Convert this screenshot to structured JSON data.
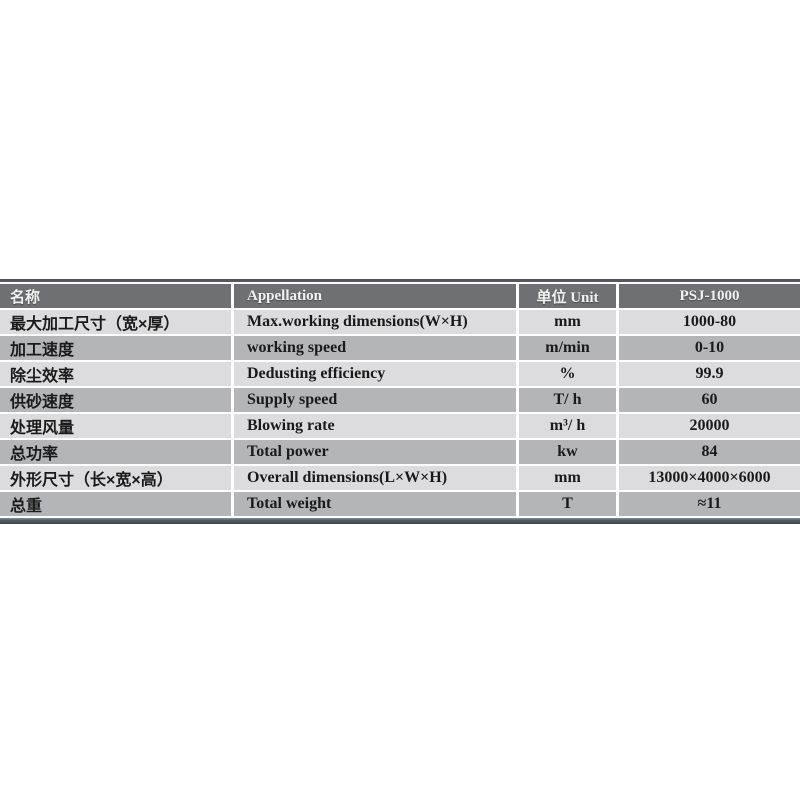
{
  "colors": {
    "top_line": "#55575a",
    "header_bg": "#6e7073",
    "row_light": "#dcdcde",
    "row_dark": "#b4b5b8",
    "bar_top": "#8a949a",
    "bottom_bar": "#4d5a60",
    "bar_bottom": "#3b454b"
  },
  "table": {
    "header": {
      "name_cn": "名称",
      "appellation": "Appellation",
      "unit": "单位 Unit",
      "model": "PSJ-1000"
    },
    "rows": [
      {
        "name_cn": "最大加工尺寸（宽×厚）",
        "appellation": "Max.working dimensions(W×H)",
        "unit": "mm",
        "value": "1000-80"
      },
      {
        "name_cn": "加工速度",
        "appellation": "working speed",
        "unit": "m/min",
        "value": "0-10"
      },
      {
        "name_cn": "除尘效率",
        "appellation": "Dedusting efficiency",
        "unit": "%",
        "value": "99.9"
      },
      {
        "name_cn": "供砂速度",
        "appellation": "Supply speed",
        "unit": "T/ h",
        "value": "60"
      },
      {
        "name_cn": "处理风量",
        "appellation": "Blowing rate",
        "unit": "m³/ h",
        "value": "20000"
      },
      {
        "name_cn": "总功率",
        "appellation": "Total power",
        "unit": "kw",
        "value": "84"
      },
      {
        "name_cn": "外形尺寸（长×宽×高）",
        "appellation": "Overall dimensions(L×W×H)",
        "unit": "mm",
        "value": "13000×4000×6000"
      },
      {
        "name_cn": "总重",
        "appellation": "Total weight",
        "unit": "T",
        "value": "≈11"
      }
    ]
  }
}
